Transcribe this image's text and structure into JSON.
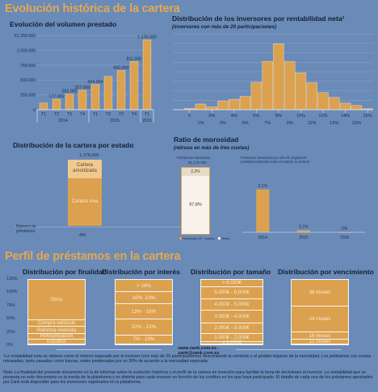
{
  "titles": {
    "main": "Evolución histórica de la cartera",
    "profile": "Perfil de préstamos en la cartera"
  },
  "volume": {
    "title": "Evolución del volumen prestado",
    "years": [
      "2014",
      "2015",
      "2016"
    ]
  },
  "investors": {
    "title": "Distribución de los inversores por rentabilidad neta¹",
    "subtitle": "(inversores con más de 20 participaciones)"
  },
  "state": {
    "title": "Distribución de la cartera por estado",
    "total": "1.176.000",
    "amortized_label": "Cartera amortizada",
    "alive_label": "Cartera viva",
    "loans_label": "Número de préstamos",
    "loans_value": "450"
  },
  "morosidad": {
    "title": "Ratio de morosidad",
    "subtitle": "(retraso en más de tres cuotas)",
    "left_caption": "Préstamos retrasados",
    "left_total": "€1.176.000",
    "left_top_pct": "2,2%",
    "left_bottom_pct": "97,8%",
    "legend_late": "Retrasado (3+ cuotas)",
    "legend_ok": "Resto",
    "right_caption_1": "Préstamos retrasados por año de originación",
    "right_caption_2": "(cantidad retrasada sobre el total de la cartera)"
  },
  "profile": {
    "finalidad": {
      "title": "Distribución por finalidad",
      "yticks": [
        "125%",
        "100%",
        "75%",
        "50%",
        "25%",
        "0%"
      ],
      "segments": [
        "Otros",
        "Compra vehículo",
        "Reforma vivienda",
        "Refinanciación",
        "Estudios"
      ]
    },
    "interes": {
      "title": "Distribución por interés",
      "segments": [
        "> 19%",
        "16% -19%",
        "13% - 16%",
        "10% - 13%",
        "7% - 10%"
      ]
    },
    "tamano": {
      "title": "Distribución por tamaño",
      "segments": [
        "> 6.000€",
        "5.000€ - 6.000€",
        "4.000€ - 5.000€",
        "3.000€ - 4.000€",
        "2.000€ - 3.000€",
        "1.000€ - 2.000€",
        "≤ 1.000€"
      ]
    },
    "vencimiento": {
      "title": "Distribución por vencimiento",
      "segments": [
        "36 meses",
        "24 meses",
        "18 meses",
        "12 meses"
      ]
    }
  },
  "footer": {
    "contact": "www.zank.com.es - zank@zank.com.es",
    "note1": "¹La rentabilidad neta se obtiene como el retorno esperado por el inversor (con más de 20 participaciones) descontando la comisión y el posible impacto de la morosidad. Los préstamos con cuotas retrasadas, tanto pasadas como futuras, están ponderadas por un 30% de acuerdo a la morosidad esperada.",
    "note2": "Nota: La finalidad del presente documento es la de informar sobre la evolución histórica y el perfil de la cartera de inversión para facilitar la toma de decisiones al inversor. La rentabilidad que se presenta en este documento es la media de la plataforma y es distinta para cada inversor en función de los créditos en los que haya participado. El detalle de cada uno de los préstamos aprobados por Zank está disponible para los inversores registrados en la plataforma."
  },
  "chart_data": [
    {
      "type": "bar",
      "title": "Evolución del volumen prestado",
      "categories": [
        "T1",
        "T2",
        "T3",
        "T4",
        "T1",
        "T2",
        "T3",
        "T4",
        "T1"
      ],
      "values": [
        112000,
        177000,
        262000,
        327000,
        424000,
        560000,
        660000,
        811000,
        1176000
      ],
      "labels": [
        "",
        "177.000",
        "262.000",
        "327.000",
        "424.000",
        "",
        "660.000",
        "811.000",
        "1.176.000"
      ],
      "yticks": [
        0,
        250000,
        500000,
        750000,
        1000000,
        1250000
      ],
      "ytick_labels": [
        "0",
        "250.000",
        "500.000",
        "750.000",
        "1.000.000",
        "€1.250.000"
      ],
      "ylim": [
        0,
        1250000
      ],
      "groups": [
        {
          "label": "2014",
          "from": 0,
          "to": 3
        },
        {
          "label": "2015",
          "from": 4,
          "to": 7
        },
        {
          "label": "2016",
          "from": 8,
          "to": 8
        }
      ],
      "color": "#dca14e"
    },
    {
      "type": "bar",
      "title": "Distribución de los inversores por rentabilidad neta¹",
      "x": [
        -1,
        0,
        1,
        2,
        3,
        4,
        5,
        6,
        7,
        8,
        9,
        10,
        11,
        12,
        13,
        14,
        15,
        16
      ],
      "values": [
        0,
        0.3,
        1.2,
        0.6,
        1.8,
        2.2,
        2.8,
        5.8,
        10.2,
        13.9,
        10.2,
        7.8,
        5.7,
        3.6,
        2.6,
        1.4,
        0.9,
        0.2
      ],
      "xtick_labels": [
        "0",
        "2%",
        "4%",
        "6%",
        "8%",
        "10%",
        "12%",
        "14%",
        "16%"
      ],
      "xtick_labels_minor": [
        "1%",
        "3%",
        "5%",
        "7%",
        "9%",
        "11%",
        "13%",
        "15%"
      ],
      "yticks": [
        0,
        2,
        4,
        6,
        8,
        10,
        12,
        14,
        16
      ],
      "ylim": [
        0,
        16
      ],
      "color": "#dca14e"
    },
    {
      "type": "bar",
      "title": "Distribución de la cartera por estado",
      "stack": [
        {
          "name": "Cartera amortizada",
          "share": 0.28
        },
        {
          "name": "Cartera viva",
          "share": 0.72
        }
      ],
      "total": 1176000
    },
    {
      "type": "bar",
      "title": "Préstamos retrasados por año de originación",
      "categories": [
        "2014",
        "2015",
        "2016"
      ],
      "values": [
        2.1,
        0.1,
        0.0
      ],
      "labels": [
        "2,1%",
        "0,1%",
        "0%"
      ],
      "ylim": [
        0,
        3
      ],
      "color": "#dca14e"
    },
    {
      "type": "bar",
      "title": "Distribución por finalidad",
      "stack": [
        {
          "name": "Estudios",
          "share": 8
        },
        {
          "name": "Refinanciación",
          "share": 8
        },
        {
          "name": "Reforma vivienda",
          "share": 11
        },
        {
          "name": "Compra vehículo",
          "share": 10
        },
        {
          "name": "Otros",
          "share": 63
        }
      ]
    },
    {
      "type": "bar",
      "title": "Distribución por interés",
      "stack": [
        {
          "name": "7% - 10%",
          "share": 14
        },
        {
          "name": "10% - 13%",
          "share": 25
        },
        {
          "name": "13% - 16%",
          "share": 23
        },
        {
          "name": "16% -19%",
          "share": 19
        },
        {
          "name": "> 19%",
          "share": 19
        }
      ]
    },
    {
      "type": "bar",
      "title": "Distribución por tamaño",
      "stack": [
        {
          "name": "≤ 1.000€",
          "share": 4
        },
        {
          "name": "1.000€ - 2.000€",
          "share": 12
        },
        {
          "name": "2.000€ - 3.000€",
          "share": 17
        },
        {
          "name": "3.000€ - 4.000€",
          "share": 19
        },
        {
          "name": "4.000€ - 5.000€",
          "share": 18
        },
        {
          "name": "5.000€ - 6.000€",
          "share": 19
        },
        {
          "name": "> 6.000€",
          "share": 11
        }
      ]
    },
    {
      "type": "bar",
      "title": "Distribución por vencimiento",
      "stack": [
        {
          "name": "12 meses",
          "share": 7
        },
        {
          "name": "18 meses",
          "share": 12
        },
        {
          "name": "24 meses",
          "share": 40
        },
        {
          "name": "36 meses",
          "share": 41
        }
      ]
    }
  ]
}
